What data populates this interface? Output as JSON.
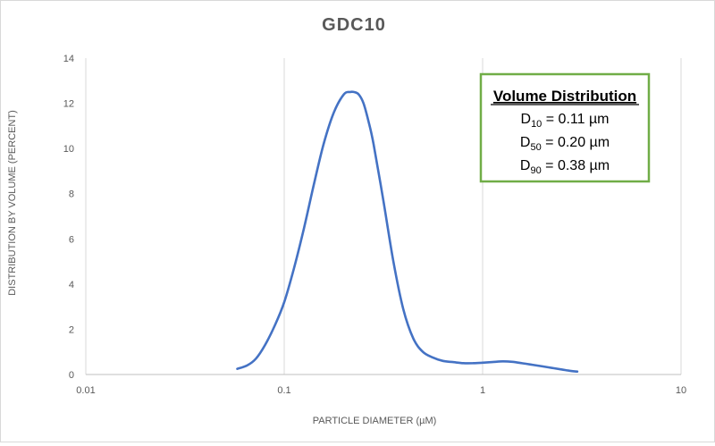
{
  "chart_data": {
    "type": "line",
    "title": "GDC10",
    "xlabel": "PARTICLE DIAMETER (µM)",
    "ylabel": "DISTRIBUTION BY VOLUME (PERCENT)",
    "x_scale": "log",
    "xlim": [
      0.01,
      10
    ],
    "ylim": [
      0,
      14
    ],
    "x_ticks": [
      "0.01",
      "0.1",
      "1",
      "10"
    ],
    "y_ticks": [
      "0",
      "2",
      "4",
      "6",
      "8",
      "10",
      "12",
      "14"
    ],
    "grid": "vertical",
    "colors": {
      "series": "#4472c4",
      "box_border": "#70ad47",
      "grid": "#d9d9d9",
      "text": "#595959"
    },
    "series": [
      {
        "x": [
          0.058,
          0.065,
          0.072,
          0.08,
          0.09,
          0.1,
          0.112,
          0.126,
          0.141,
          0.158,
          0.178,
          0.2,
          0.215,
          0.224,
          0.237,
          0.251,
          0.266,
          0.282,
          0.316,
          0.355,
          0.398,
          0.447,
          0.5,
          0.562,
          0.631,
          0.708,
          0.8,
          0.9,
          1.0,
          1.12,
          1.26,
          1.41,
          1.58,
          1.78,
          2.0,
          2.24,
          2.51,
          2.82,
          3.0
        ],
        "y": [
          0.25,
          0.4,
          0.7,
          1.3,
          2.2,
          3.2,
          4.7,
          6.5,
          8.4,
          10.2,
          11.6,
          12.4,
          12.5,
          12.5,
          12.4,
          12.0,
          11.2,
          10.2,
          7.7,
          5.0,
          2.9,
          1.6,
          1.0,
          0.75,
          0.6,
          0.55,
          0.5,
          0.5,
          0.52,
          0.55,
          0.58,
          0.56,
          0.5,
          0.43,
          0.36,
          0.29,
          0.22,
          0.15,
          0.13
        ]
      }
    ],
    "legend_box": {
      "title": "Volume Distribution",
      "lines": [
        {
          "label": "D",
          "sub": "10",
          "value": " = 0.11 µm"
        },
        {
          "label": "D",
          "sub": "50",
          "value": " = 0.20 µm"
        },
        {
          "label": "D",
          "sub": "90",
          "value": " = 0.38 µm"
        }
      ]
    }
  }
}
